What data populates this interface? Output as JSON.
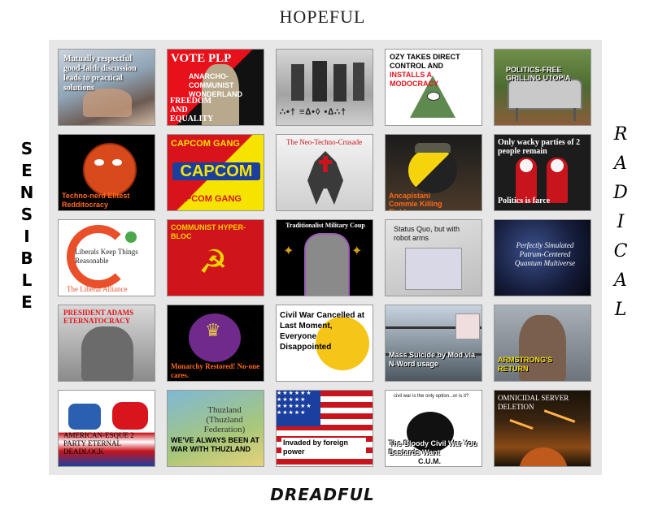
{
  "axes": {
    "top": "HOPEFUL",
    "bottom": "DREADFUL",
    "left_letters": [
      "S",
      "E",
      "N",
      "S",
      "I",
      "B",
      "L",
      "E"
    ],
    "right_letters": [
      "R",
      "A",
      "D",
      "I",
      "C",
      "A",
      "L"
    ]
  },
  "tiles": {
    "r1c1": "Mutually respectful good-faith discussion leads to practical solutions",
    "r1c2_title": "VOTE PLP",
    "r1c2_a": "ANARCHO-COMMUNIST WONDERLAND",
    "r1c2_b": "FREEDOM AND EQUALITY",
    "r1c3": "∴•† ≡∆•◊ •∆∴†",
    "r1c4_a": "OZY TAKES DIRECT CONTROL AND",
    "r1c4_b": "INSTALLS A MODOCRACY",
    "r1c5": "POLITICS-FREE GRILLING UTOPIA",
    "r2c1": "Techno-nerd Elitest Redditocracy",
    "r2c2_top": "CAPCOM GANG",
    "r2c2_logo": "CAPCOM",
    "r2c2_bottom": "CAPCOM GANG",
    "r2c3": "The Neo-Techno-Crusade",
    "r2c4": "Ancapistani Commie Killing Fields",
    "r2c5_a": "Only wacky parties of 2 people remain",
    "r2c5_b": "Politics is farce",
    "r3c1_a": "Liberals Keep Things Reasonable",
    "r3c1_b": "The Liberal Alliance",
    "r3c2": "COMMUNIST HYPER-BLOC",
    "r3c3": "Traditionalist Military Coup",
    "r3c4": "Status Quo, but with robot arms",
    "r3c5": "Perfectly Simulated Patrum-Centered Quantum Multiverse",
    "r4c1": "PRESIDENT ADAMS ETERNATOCRACY",
    "r4c2": "Monarchy Restored! No-one cares.",
    "r4c3": "Civil War Cancelled at Last Moment, Everyone Disappointed",
    "r4c4": "Mass Suicide by Mod via N-Word usage",
    "r4c5": "ARMSTRONG'S RETURN",
    "r5c1": "AMERICAN-ESQUE 2 PARTY ETERNAL DEADLOCK",
    "r5c2_a": "Thuzland (Thuzland Federation)",
    "r5c2_b": "WE'VE ALWAYS BEEN AT WAR WITH THUZLAND",
    "r5c3": "Invaded by foreign power",
    "r5c4_top": "civil war is the only option...or is it?",
    "r5c4_a": "The Bloody Civil War You Bastards Want",
    "r5c4_b": "C.U.M.",
    "r5c5": "OMNICIDAL SERVER DELETION"
  },
  "colors": {
    "board": "#e7e7e7",
    "capcom_red": "#d8131b",
    "capcom_yellow": "#f6e400",
    "capcom_blue": "#1b3f9e",
    "soviet_red": "#d0141c",
    "soviet_gold": "#f2d200"
  }
}
